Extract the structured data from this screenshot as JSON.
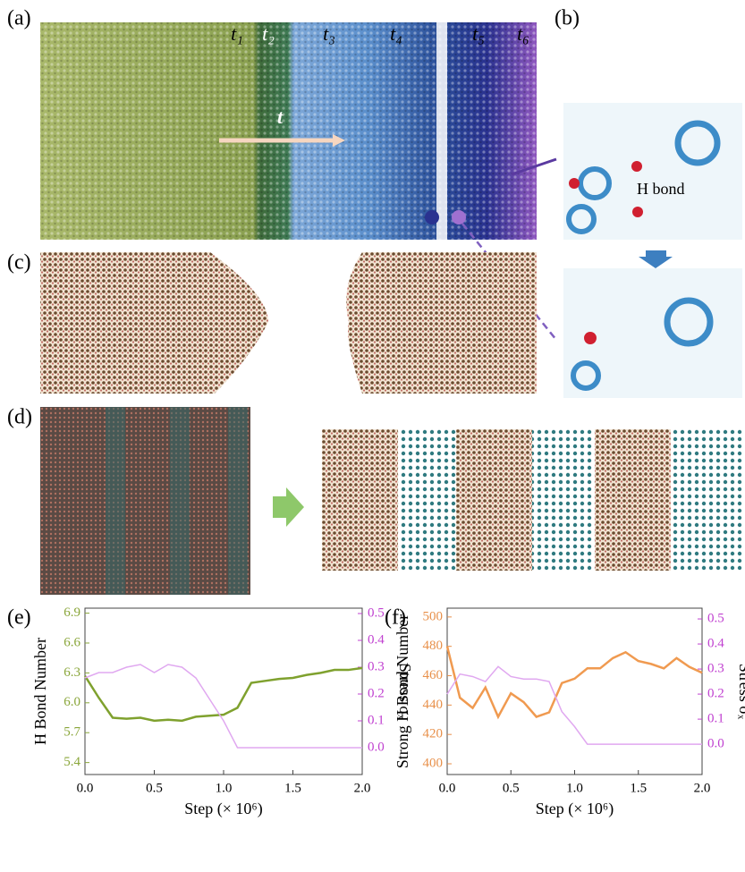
{
  "figure": {
    "panel_labels": [
      "(a)",
      "(b)",
      "(c)",
      "(d)",
      "(e)",
      "(f)"
    ],
    "time_labels": [
      "t₁",
      "t₂",
      "t₃",
      "t₄",
      "t₅",
      "t₆"
    ],
    "arrow_label": "t",
    "bond_label": "H bond"
  },
  "chart_data": [
    {
      "type": "line",
      "x_label": "Step (× 10⁶)",
      "y_label": "H Bond Number",
      "y2_label": "Stress σₓ",
      "x": [
        0,
        0.1,
        0.2,
        0.3,
        0.4,
        0.5,
        0.6,
        0.7,
        0.8,
        0.9,
        1.0,
        1.1,
        1.2,
        1.3,
        1.4,
        1.5,
        1.6,
        1.7,
        1.8,
        1.9,
        2.0
      ],
      "xlim": [
        0,
        2
      ],
      "xticks": [
        {
          "value": 0,
          "label": "0.0"
        },
        0.5,
        {
          "value": 1,
          "label": "1.0"
        },
        1.5,
        {
          "value": 2,
          "label": "2.0"
        }
      ],
      "ylim": [
        5.28,
        6.95
      ],
      "yticks": [
        5.4,
        5.7,
        {
          "value": 6,
          "label": "6.0"
        },
        6.3,
        6.6,
        6.9
      ],
      "y2lim": [
        -0.1,
        0.52
      ],
      "y2ticks": [
        {
          "value": 0,
          "label": "0.0"
        },
        0.1,
        0.2,
        0.3,
        0.4,
        0.5
      ],
      "y_color": "#8aa63a",
      "y2_color": "#c040d0",
      "series": [
        {
          "name": "H Bond Number",
          "color": "#7fa12e",
          "values": [
            6.27,
            6.05,
            5.85,
            5.84,
            5.85,
            5.82,
            5.83,
            5.82,
            5.86,
            5.87,
            5.88,
            5.95,
            6.2,
            6.22,
            6.24,
            6.25,
            6.28,
            6.3,
            6.33,
            6.33,
            6.35
          ]
        },
        {
          "name": "Stress σₓ",
          "color": "#e0a8f0",
          "axis": "y2",
          "values": [
            0.26,
            0.28,
            0.28,
            0.3,
            0.31,
            0.28,
            0.31,
            0.3,
            0.26,
            0.18,
            0.1,
            0.0,
            0.0,
            0.0,
            0.0,
            0.0,
            0.0,
            0.0,
            0.0,
            0.0,
            0.0
          ]
        }
      ]
    },
    {
      "type": "line",
      "x_label": "Step (× 10⁶)",
      "y_label": "Strong H Bond Number",
      "y2_label": "Stress σₓ",
      "x": [
        0,
        0.1,
        0.2,
        0.3,
        0.4,
        0.5,
        0.6,
        0.7,
        0.8,
        0.9,
        1.0,
        1.1,
        1.2,
        1.3,
        1.4,
        1.5,
        1.6,
        1.7,
        1.8,
        1.9,
        2.0
      ],
      "xlim": [
        0,
        2
      ],
      "xticks": [
        {
          "value": 0,
          "label": "0.0"
        },
        0.5,
        {
          "value": 1,
          "label": "1.0"
        },
        1.5,
        {
          "value": 2,
          "label": "2.0"
        }
      ],
      "ylim": [
        392.7,
        506
      ],
      "yticks": [
        400,
        420,
        440,
        460,
        480,
        500
      ],
      "y2lim": [
        -0.121,
        0.543
      ],
      "y2ticks": [
        {
          "value": 0,
          "label": "0.0"
        },
        0.1,
        0.2,
        0.3,
        0.4,
        0.5
      ],
      "y_color": "#e8904a",
      "y2_color": "#c040d0",
      "series": [
        {
          "name": "Strong H Bond Number",
          "color": "#f09a50",
          "values": [
            480,
            445,
            438,
            452,
            432,
            448,
            442,
            432,
            435,
            455,
            458,
            465,
            465,
            472,
            476,
            470,
            468,
            465,
            472,
            466,
            462
          ]
        },
        {
          "name": "Stress σₓ",
          "color": "#e0a8f0",
          "axis": "y2",
          "values": [
            0.2,
            0.28,
            0.27,
            0.25,
            0.31,
            0.27,
            0.26,
            0.26,
            0.25,
            0.13,
            0.07,
            0.0,
            0.0,
            0.0,
            0.0,
            0.0,
            0.0,
            0.0,
            0.0,
            0.0,
            0.0
          ]
        }
      ]
    }
  ]
}
